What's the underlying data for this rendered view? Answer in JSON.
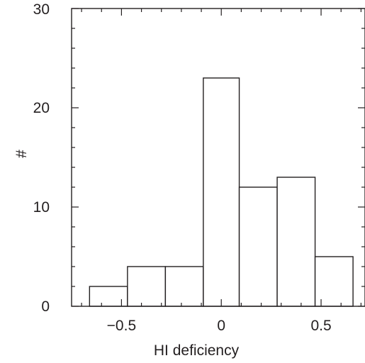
{
  "chart_data": {
    "type": "bar",
    "title": "",
    "xlabel": "HI deficiency",
    "ylabel": "#",
    "xlim": [
      -0.75,
      0.72
    ],
    "ylim": [
      0,
      30
    ],
    "bins": [
      {
        "x0": -0.66,
        "x1": -0.47,
        "count": 2
      },
      {
        "x0": -0.47,
        "x1": -0.28,
        "count": 4
      },
      {
        "x0": -0.28,
        "x1": -0.09,
        "count": 4
      },
      {
        "x0": -0.09,
        "x1": 0.09,
        "count": 23
      },
      {
        "x0": 0.09,
        "x1": 0.28,
        "count": 12
      },
      {
        "x0": 0.28,
        "x1": 0.47,
        "count": 13
      },
      {
        "x0": 0.47,
        "x1": 0.66,
        "count": 5
      }
    ],
    "x_major_ticks": [
      -0.5,
      0,
      0.5
    ],
    "x_tick_labels": [
      "−0.5",
      "0",
      "0.5"
    ],
    "x_minor_ticks": [
      -0.7,
      -0.6,
      -0.4,
      -0.3,
      -0.2,
      -0.1,
      0.1,
      0.2,
      0.3,
      0.4,
      0.6,
      0.7
    ],
    "y_major_ticks": [
      0,
      10,
      20,
      30
    ],
    "y_tick_labels": [
      "0",
      "10",
      "20",
      "30"
    ],
    "y_minor_ticks": [
      2,
      4,
      6,
      8,
      12,
      14,
      16,
      18,
      22,
      24,
      26,
      28
    ],
    "grid": false,
    "colors": {
      "stroke": "#231f20",
      "fill": "#ffffff"
    }
  }
}
